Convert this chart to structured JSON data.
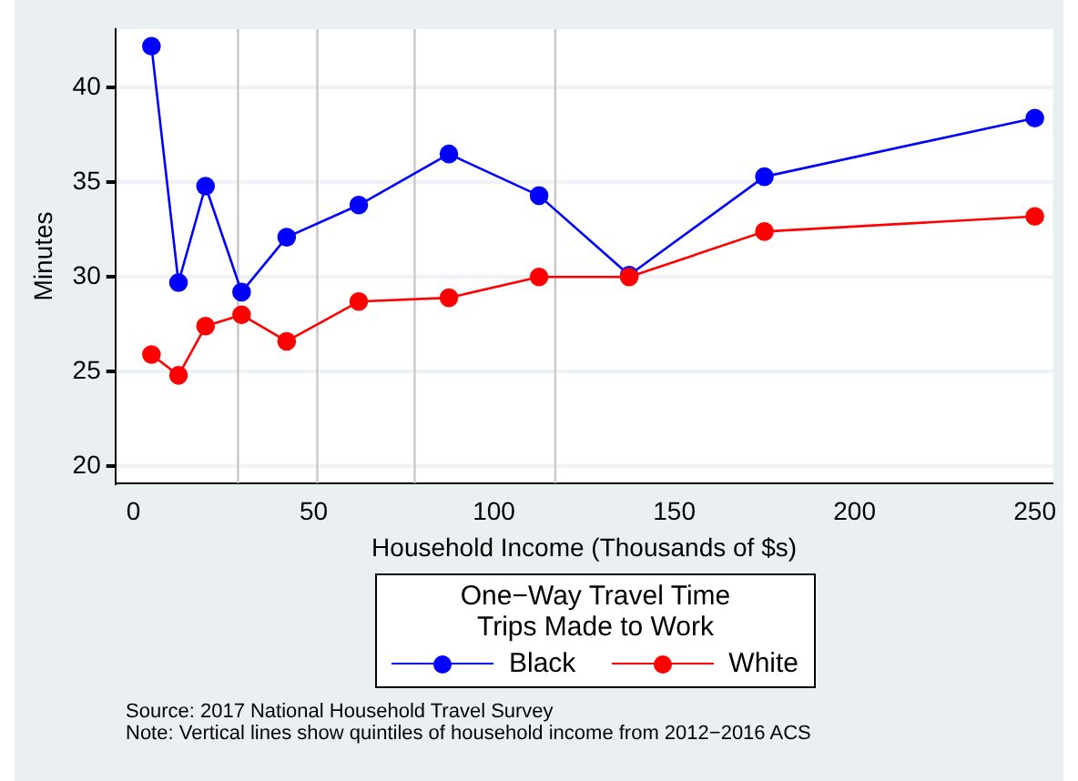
{
  "chart_data": {
    "type": "line",
    "xlabel": "Household Income (Thousands of $s)",
    "ylabel": "Minutes",
    "legend_title": "One−Way Travel Time\nTrips Made to Work",
    "x": [
      5,
      12.5,
      20,
      30,
      42.5,
      62.5,
      87.5,
      112.5,
      137.5,
      175,
      250
    ],
    "series": [
      {
        "name": "Black",
        "color": "#0000ff",
        "values": [
          42.2,
          29.7,
          34.8,
          29.2,
          32.1,
          33.8,
          36.5,
          34.3,
          30.1,
          35.3,
          38.4
        ]
      },
      {
        "name": "White",
        "color": "#ff0000",
        "values": [
          25.9,
          24.8,
          27.4,
          28.0,
          26.6,
          28.7,
          28.9,
          30.0,
          30.0,
          32.4,
          33.2
        ]
      }
    ],
    "xlim": [
      -5,
      255
    ],
    "xticks": [
      0,
      50,
      100,
      150,
      200,
      250
    ],
    "ylim": [
      19.1,
      43.1
    ],
    "yticks": [
      20,
      25,
      30,
      35,
      40
    ],
    "ref_lines": [
      {
        "axis": "x",
        "value": 29,
        "color": "#c8c8c8"
      },
      {
        "axis": "x",
        "value": 51,
        "color": "#c8c8c8"
      },
      {
        "axis": "x",
        "value": 78,
        "color": "#c8c8c8"
      },
      {
        "axis": "x",
        "value": 117,
        "color": "#c8c8c8"
      }
    ],
    "grid": "y",
    "legend": "bottom",
    "marker": "circle",
    "line_style": "solid",
    "annotations": [
      "Source:  2017 National Household Travel Survey",
      "Note:  Vertical lines show quintiles of household income from 2012−2016 ACS"
    ]
  }
}
